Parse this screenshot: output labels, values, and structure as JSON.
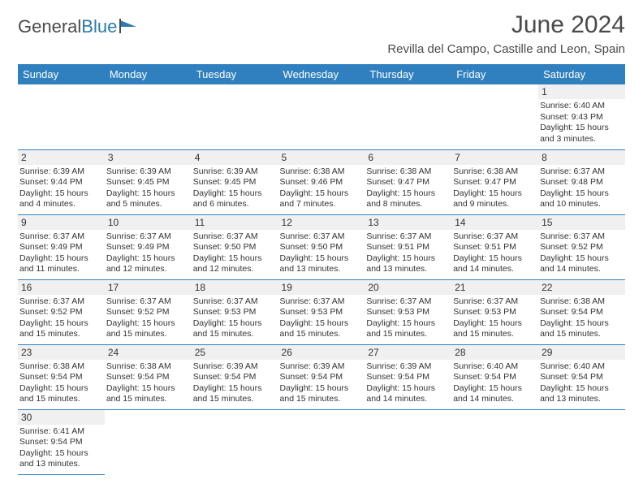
{
  "logo": {
    "part1": "General",
    "part2": "Blue"
  },
  "title": "June 2024",
  "subtitle": "Revilla del Campo, Castille and Leon, Spain",
  "colors": {
    "header_bg": "#3080c0",
    "header_fg": "#ffffff",
    "daynum_bg": "#f0f0f0",
    "text": "#333333",
    "logo_gray": "#4a4a4a",
    "logo_blue": "#2a7ab0"
  },
  "weekdays": [
    "Sunday",
    "Monday",
    "Tuesday",
    "Wednesday",
    "Thursday",
    "Friday",
    "Saturday"
  ],
  "firstDayOffset": 6,
  "daysInMonth": 30,
  "days": {
    "1": {
      "sunrise": "6:40 AM",
      "sunset": "9:43 PM",
      "daylight": "15 hours and 3 minutes."
    },
    "2": {
      "sunrise": "6:39 AM",
      "sunset": "9:44 PM",
      "daylight": "15 hours and 4 minutes."
    },
    "3": {
      "sunrise": "6:39 AM",
      "sunset": "9:45 PM",
      "daylight": "15 hours and 5 minutes."
    },
    "4": {
      "sunrise": "6:39 AM",
      "sunset": "9:45 PM",
      "daylight": "15 hours and 6 minutes."
    },
    "5": {
      "sunrise": "6:38 AM",
      "sunset": "9:46 PM",
      "daylight": "15 hours and 7 minutes."
    },
    "6": {
      "sunrise": "6:38 AM",
      "sunset": "9:47 PM",
      "daylight": "15 hours and 8 minutes."
    },
    "7": {
      "sunrise": "6:38 AM",
      "sunset": "9:47 PM",
      "daylight": "15 hours and 9 minutes."
    },
    "8": {
      "sunrise": "6:37 AM",
      "sunset": "9:48 PM",
      "daylight": "15 hours and 10 minutes."
    },
    "9": {
      "sunrise": "6:37 AM",
      "sunset": "9:49 PM",
      "daylight": "15 hours and 11 minutes."
    },
    "10": {
      "sunrise": "6:37 AM",
      "sunset": "9:49 PM",
      "daylight": "15 hours and 12 minutes."
    },
    "11": {
      "sunrise": "6:37 AM",
      "sunset": "9:50 PM",
      "daylight": "15 hours and 12 minutes."
    },
    "12": {
      "sunrise": "6:37 AM",
      "sunset": "9:50 PM",
      "daylight": "15 hours and 13 minutes."
    },
    "13": {
      "sunrise": "6:37 AM",
      "sunset": "9:51 PM",
      "daylight": "15 hours and 13 minutes."
    },
    "14": {
      "sunrise": "6:37 AM",
      "sunset": "9:51 PM",
      "daylight": "15 hours and 14 minutes."
    },
    "15": {
      "sunrise": "6:37 AM",
      "sunset": "9:52 PM",
      "daylight": "15 hours and 14 minutes."
    },
    "16": {
      "sunrise": "6:37 AM",
      "sunset": "9:52 PM",
      "daylight": "15 hours and 15 minutes."
    },
    "17": {
      "sunrise": "6:37 AM",
      "sunset": "9:52 PM",
      "daylight": "15 hours and 15 minutes."
    },
    "18": {
      "sunrise": "6:37 AM",
      "sunset": "9:53 PM",
      "daylight": "15 hours and 15 minutes."
    },
    "19": {
      "sunrise": "6:37 AM",
      "sunset": "9:53 PM",
      "daylight": "15 hours and 15 minutes."
    },
    "20": {
      "sunrise": "6:37 AM",
      "sunset": "9:53 PM",
      "daylight": "15 hours and 15 minutes."
    },
    "21": {
      "sunrise": "6:37 AM",
      "sunset": "9:53 PM",
      "daylight": "15 hours and 15 minutes."
    },
    "22": {
      "sunrise": "6:38 AM",
      "sunset": "9:54 PM",
      "daylight": "15 hours and 15 minutes."
    },
    "23": {
      "sunrise": "6:38 AM",
      "sunset": "9:54 PM",
      "daylight": "15 hours and 15 minutes."
    },
    "24": {
      "sunrise": "6:38 AM",
      "sunset": "9:54 PM",
      "daylight": "15 hours and 15 minutes."
    },
    "25": {
      "sunrise": "6:39 AM",
      "sunset": "9:54 PM",
      "daylight": "15 hours and 15 minutes."
    },
    "26": {
      "sunrise": "6:39 AM",
      "sunset": "9:54 PM",
      "daylight": "15 hours and 15 minutes."
    },
    "27": {
      "sunrise": "6:39 AM",
      "sunset": "9:54 PM",
      "daylight": "15 hours and 14 minutes."
    },
    "28": {
      "sunrise": "6:40 AM",
      "sunset": "9:54 PM",
      "daylight": "15 hours and 14 minutes."
    },
    "29": {
      "sunrise": "6:40 AM",
      "sunset": "9:54 PM",
      "daylight": "15 hours and 13 minutes."
    },
    "30": {
      "sunrise": "6:41 AM",
      "sunset": "9:54 PM",
      "daylight": "15 hours and 13 minutes."
    }
  },
  "labels": {
    "sunrise": "Sunrise:",
    "sunset": "Sunset:",
    "daylight": "Daylight:"
  }
}
